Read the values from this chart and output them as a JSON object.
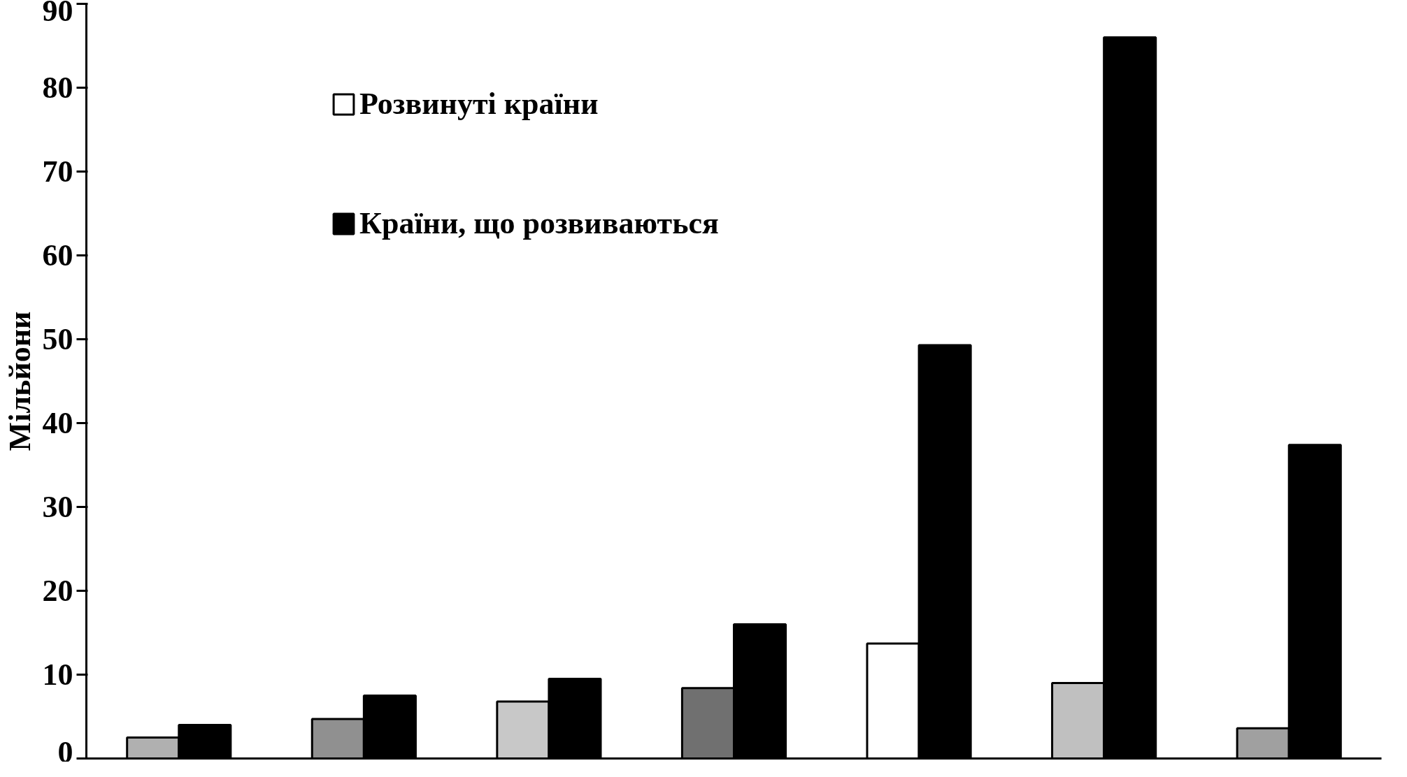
{
  "chart_data": {
    "type": "bar",
    "ylabel": "Мільйони",
    "categories": [
      null,
      null,
      null,
      null,
      null,
      null,
      null
    ],
    "series": [
      {
        "name": "Розвинуті країни",
        "color": "#ffffff",
        "colors": [
          "#b0b0b0",
          "#909090",
          "#c8c8c8",
          "#707070",
          "#ffffff",
          "#c0c0c0",
          "#a0a0a0"
        ],
        "values": [
          2.5,
          4.7,
          6.8,
          8.4,
          13.7,
          9,
          3.6
        ]
      },
      {
        "name": "Країни, що розвиваються",
        "color": "#000000",
        "values": [
          4,
          7.5,
          9.5,
          16,
          49.3,
          86,
          37.4
        ]
      }
    ],
    "ylim": [
      0,
      90
    ],
    "yticks": [
      0,
      10,
      20,
      30,
      40,
      50,
      60,
      70,
      80,
      90
    ],
    "grid": false,
    "legend": "top left"
  }
}
